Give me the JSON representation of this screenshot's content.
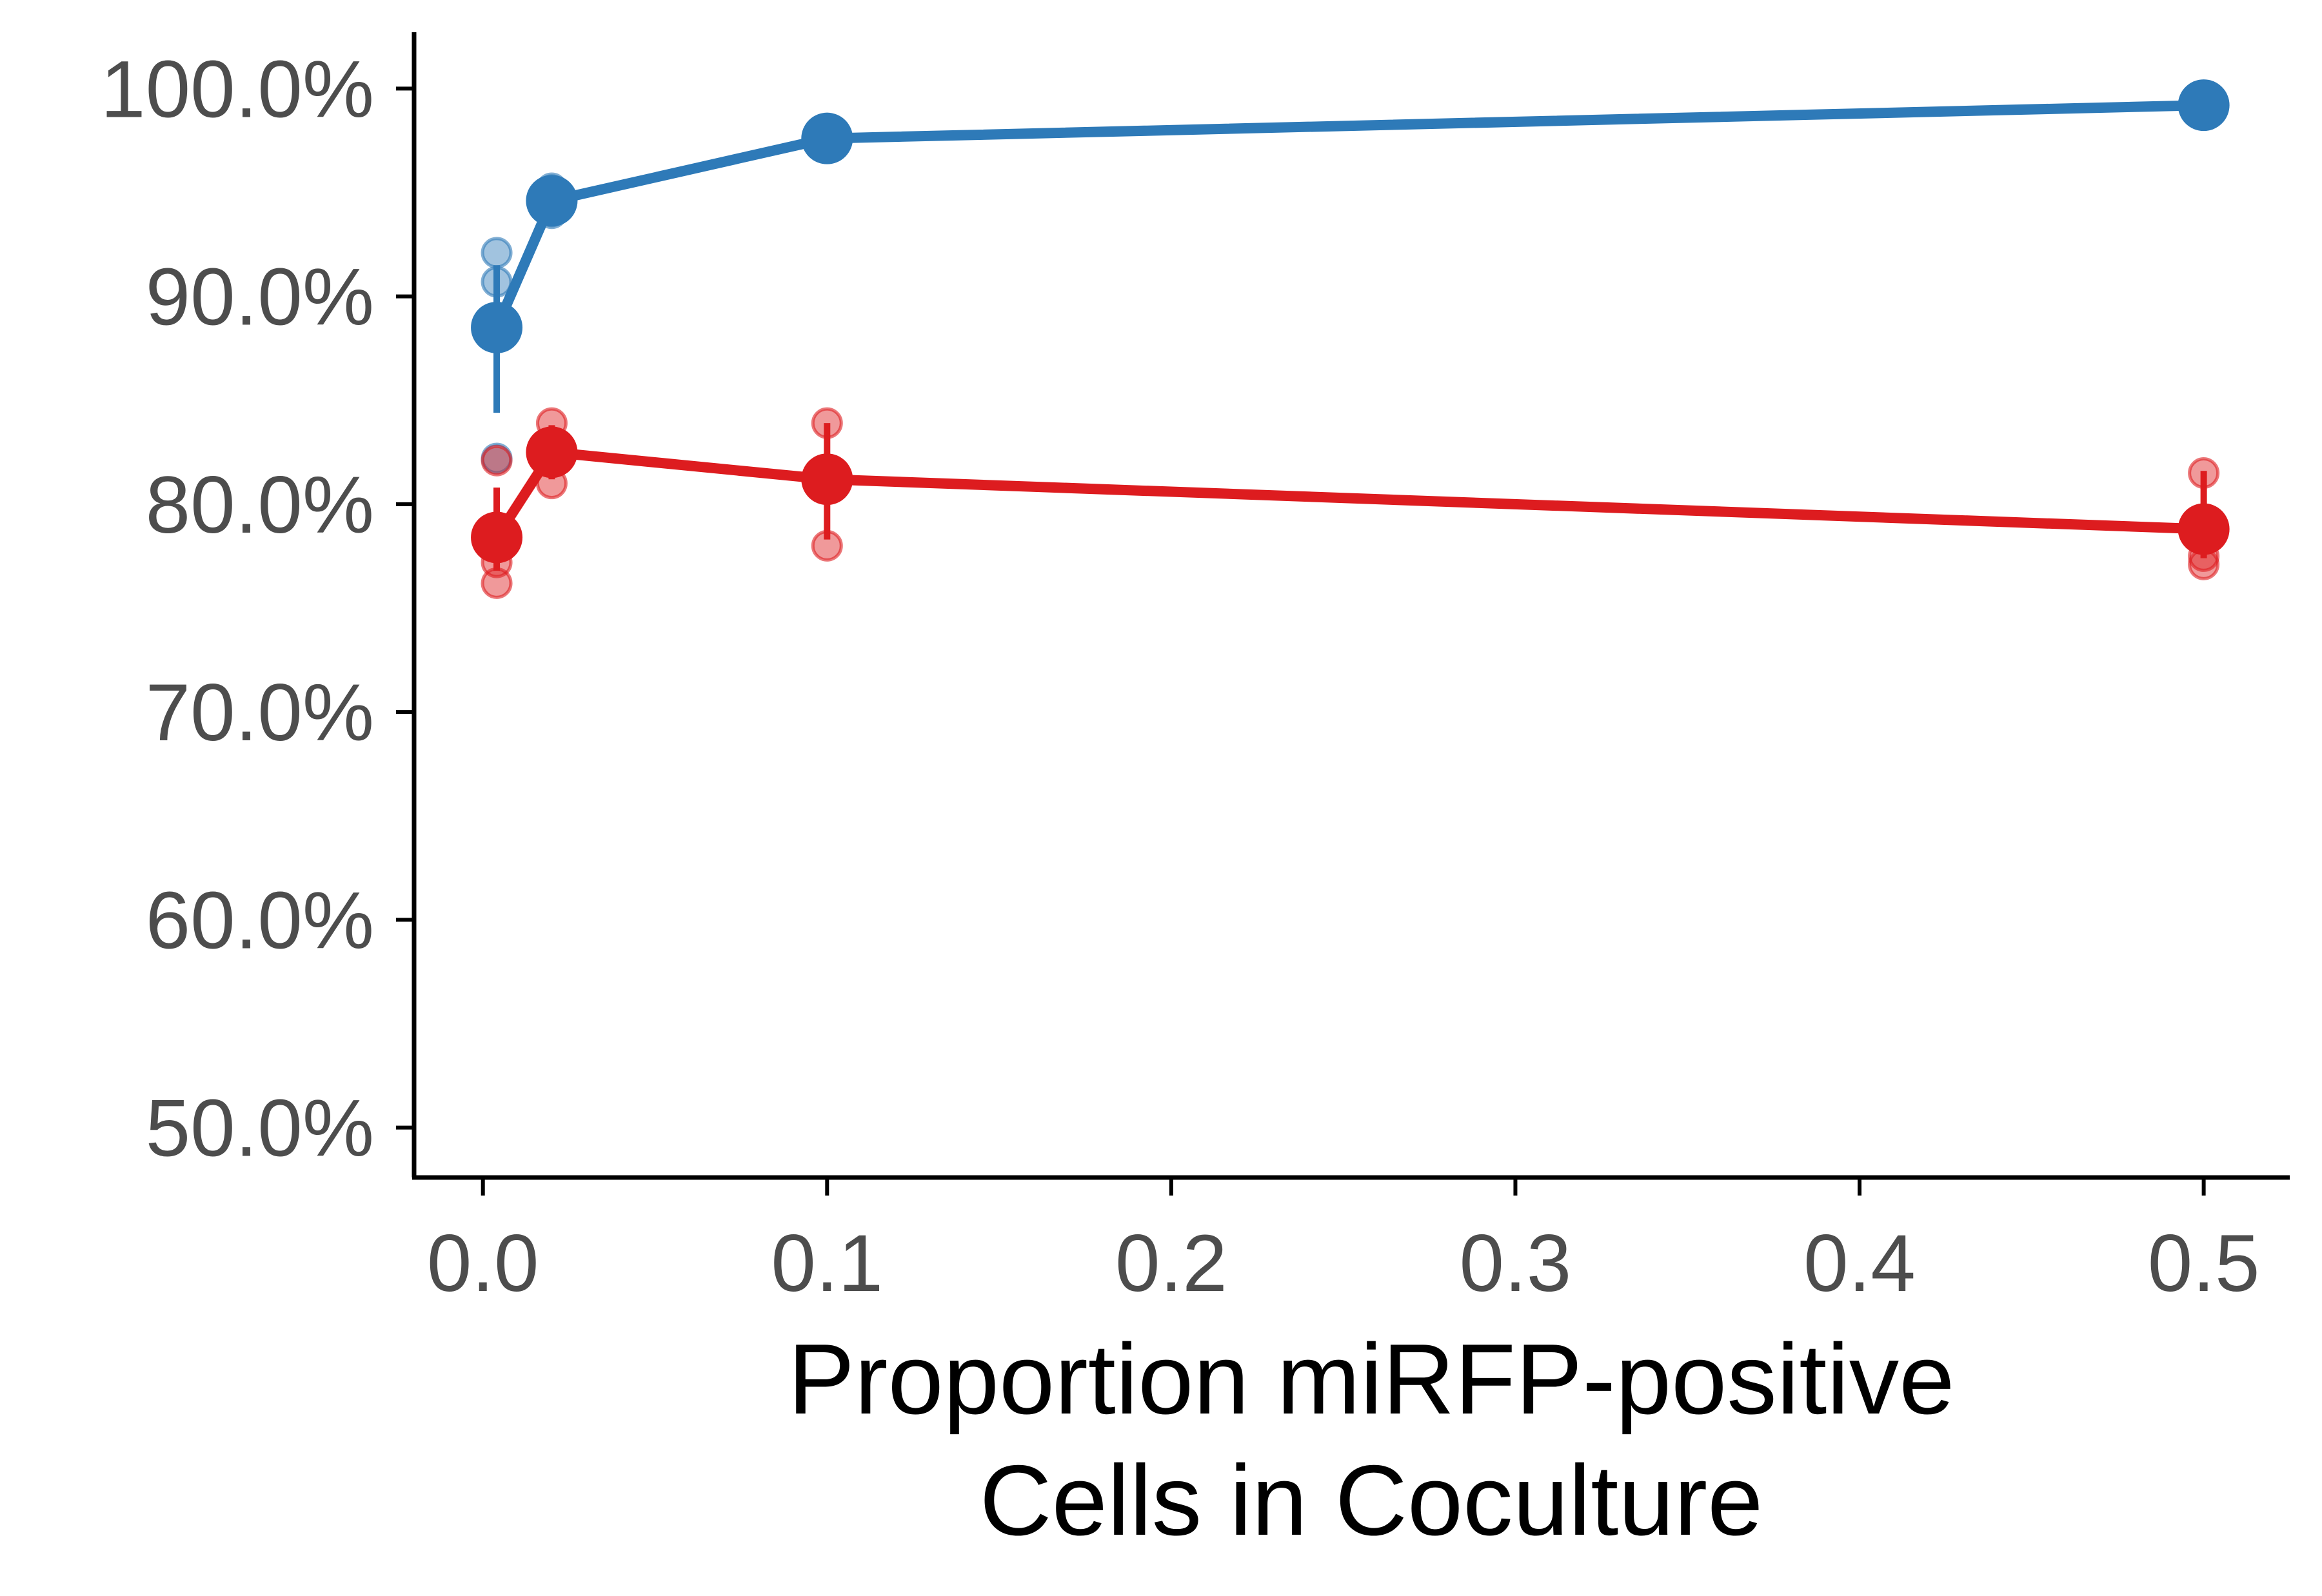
{
  "chart_data": {
    "type": "line",
    "title": "",
    "xlabel": [
      "Proportion miRFP-positive",
      "Cells in Coculture"
    ],
    "ylabel": "",
    "xlim": [
      -0.02,
      0.525
    ],
    "ylim": [
      47.6,
      102.4
    ],
    "x_ticks": [
      0.0,
      0.1,
      0.2,
      0.3,
      0.4,
      0.5
    ],
    "x_tick_labels": [
      "0.0",
      "0.1",
      "0.2",
      "0.3",
      "0.4",
      "0.5"
    ],
    "y_ticks": [
      50,
      60,
      70,
      80,
      90,
      100
    ],
    "y_tick_labels": [
      "50.0%",
      "60.0%",
      "70.0%",
      "80.0%",
      "90.0%",
      "100.0%"
    ],
    "grid": false,
    "legend": "none",
    "series": [
      {
        "color": "#2e7ab8",
        "x": [
          0.004,
          0.02,
          0.1,
          0.5
        ],
        "mean": [
          88.5,
          94.6,
          97.6,
          99.2
        ],
        "err_low": [
          84.4,
          93.8,
          97.1,
          98.9
        ],
        "err_high": [
          91.5,
          95.4,
          98.1,
          99.5
        ],
        "replicates": [
          {
            "x": 0.004,
            "values": [
              92.1,
              90.7,
              82.2
            ]
          },
          {
            "x": 0.02,
            "values": [
              95.2,
              94.8,
              94.0
            ]
          },
          {
            "x": 0.1,
            "values": [
              97.8,
              97.4
            ]
          },
          {
            "x": 0.5,
            "values": [
              99.3,
              99.1
            ]
          }
        ]
      },
      {
        "color": "#dd1c1f",
        "x": [
          0.004,
          0.02,
          0.1,
          0.5
        ],
        "mean": [
          78.4,
          82.5,
          81.2,
          78.8
        ],
        "err_low": [
          76.8,
          81.2,
          78.3,
          77.4
        ],
        "err_high": [
          80.8,
          83.8,
          83.9,
          81.6
        ],
        "replicates": [
          {
            "x": 0.004,
            "values": [
              82.1,
              77.2,
              76.2
            ]
          },
          {
            "x": 0.02,
            "values": [
              83.9,
              82.5,
              81.0
            ]
          },
          {
            "x": 0.1,
            "values": [
              83.9,
              81.6,
              78.0
            ]
          },
          {
            "x": 0.5,
            "values": [
              81.5,
              77.5,
              77.1
            ]
          }
        ]
      }
    ]
  }
}
